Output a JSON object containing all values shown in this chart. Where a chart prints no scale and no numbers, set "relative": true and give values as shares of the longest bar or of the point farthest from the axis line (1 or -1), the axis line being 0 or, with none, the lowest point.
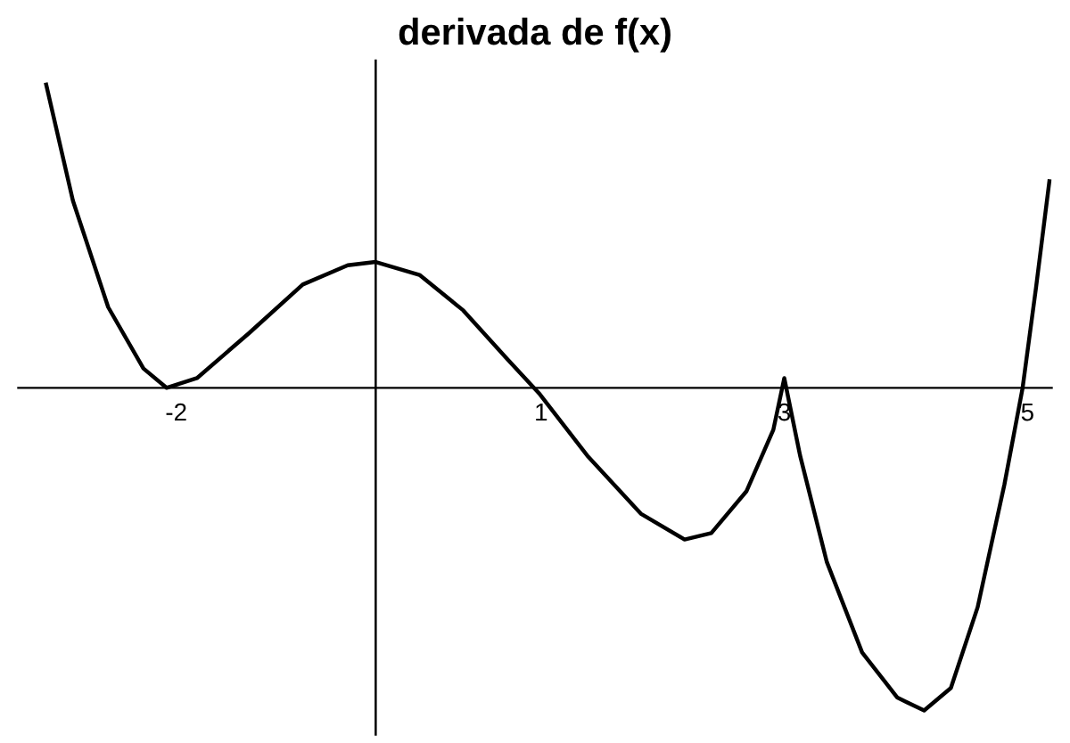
{
  "chart_data": {
    "type": "line",
    "title": "derivada de f(x)",
    "relative": true,
    "xlim": [
      -3.3,
      5.2
    ],
    "xticks": [
      -2,
      1,
      3,
      5
    ],
    "ref_lines": [
      {
        "axis": "x",
        "value": -0.36,
        "color": "#000000"
      }
    ],
    "series": [
      {
        "color": "#000000",
        "x": [
          -3.07,
          -2.85,
          -2.56,
          -2.27,
          -2.08,
          -1.83,
          -1.4,
          -0.96,
          -0.59,
          -0.36,
          0,
          0.36,
          0.72,
          0.99,
          1.38,
          1.82,
          2.18,
          2.4,
          2.69,
          2.91,
          3.0,
          3.13,
          3.35,
          3.64,
          3.93,
          4.15,
          4.37,
          4.59,
          4.81,
          4.96,
          5.07,
          5.18
        ],
        "values": [
          0.94,
          0.58,
          0.25,
          0.06,
          0.0,
          0.03,
          0.17,
          0.32,
          0.38,
          0.39,
          0.35,
          0.24,
          0.09,
          -0.02,
          -0.21,
          -0.39,
          -0.47,
          -0.45,
          -0.32,
          -0.13,
          0.03,
          -0.21,
          -0.54,
          -0.82,
          -0.96,
          -1.0,
          -0.93,
          -0.68,
          -0.3,
          0.0,
          0.31,
          0.64
        ]
      }
    ],
    "grid": false,
    "legend": false
  }
}
